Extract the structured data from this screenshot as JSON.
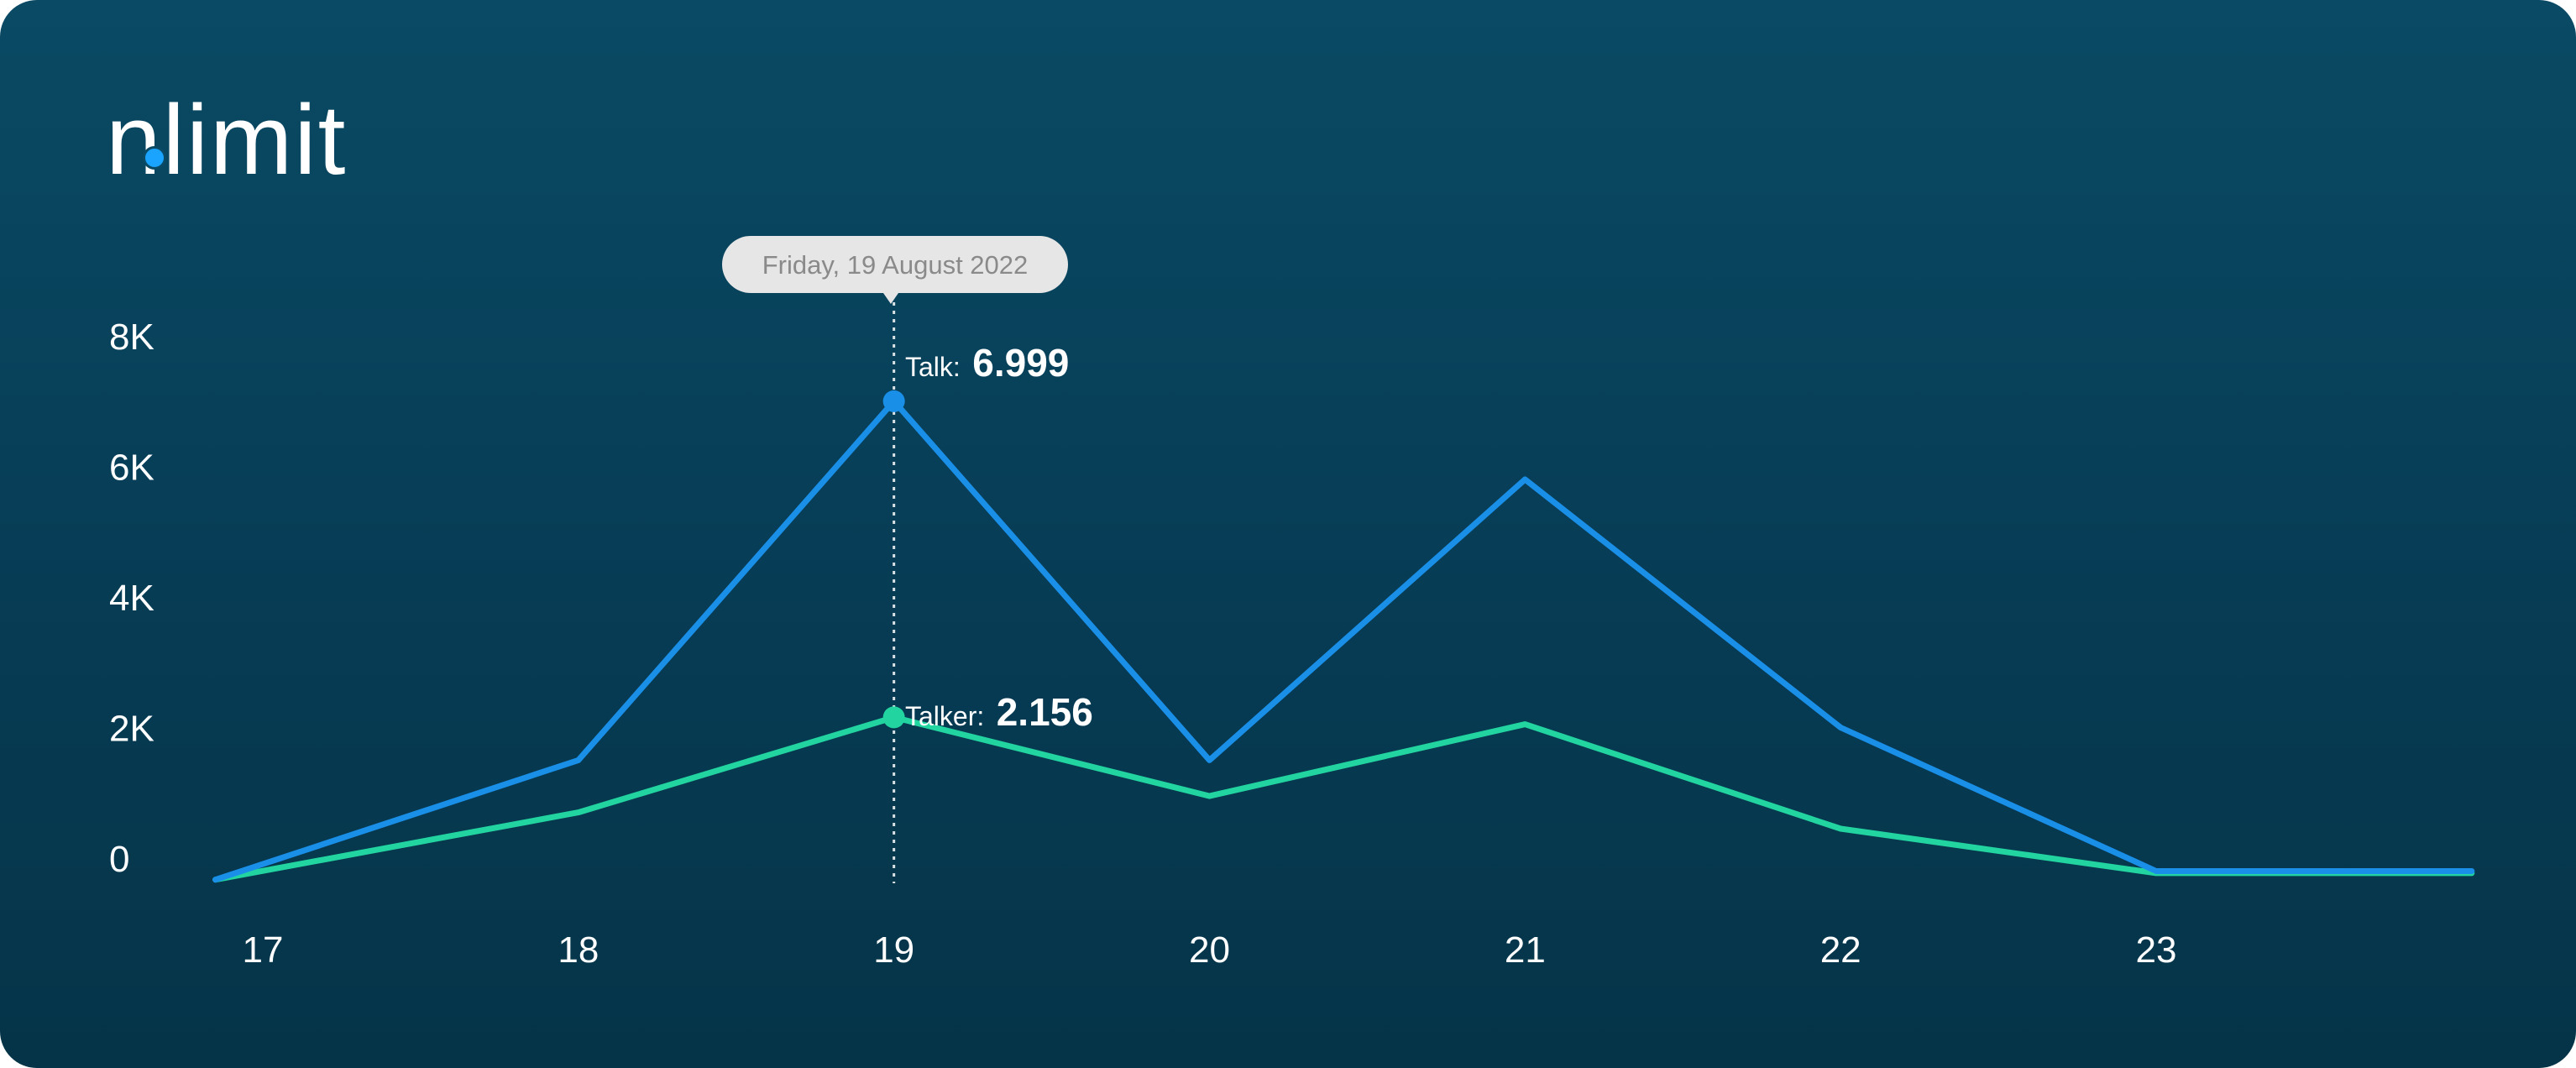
{
  "brand": {
    "logo_text": "nlimit"
  },
  "colors": {
    "talk": "#1a8fe8",
    "talker": "#22d4a0",
    "tooltip_bg": "#e6e6e6"
  },
  "tooltip": {
    "date": "Friday, 19 August 2022",
    "talk_label": "Talk:",
    "talk_value": "6.999",
    "talker_label": "Talker:",
    "talker_value": "2.156"
  },
  "chart_data": {
    "type": "line",
    "title": "",
    "xlabel": "",
    "ylabel": "",
    "x_ticks": [
      "17",
      "18",
      "19",
      "20",
      "21",
      "22",
      "23"
    ],
    "y_ticks": [
      "0",
      "2K",
      "4K",
      "6K",
      "8K"
    ],
    "ylim": [
      0,
      8000
    ],
    "grid": false,
    "series": [
      {
        "name": "Talk",
        "x": [
          16.85,
          18,
          19,
          20,
          21,
          22,
          23,
          24
        ],
        "y": [
          -330,
          1500,
          6999,
          1500,
          5800,
          2000,
          -200,
          -200
        ]
      },
      {
        "name": "Talker",
        "x": [
          16.85,
          18,
          19,
          20,
          21,
          22,
          23,
          24
        ],
        "y": [
          -330,
          700,
          2156,
          950,
          2050,
          450,
          -230,
          -230
        ]
      }
    ],
    "highlight_x": 19
  }
}
